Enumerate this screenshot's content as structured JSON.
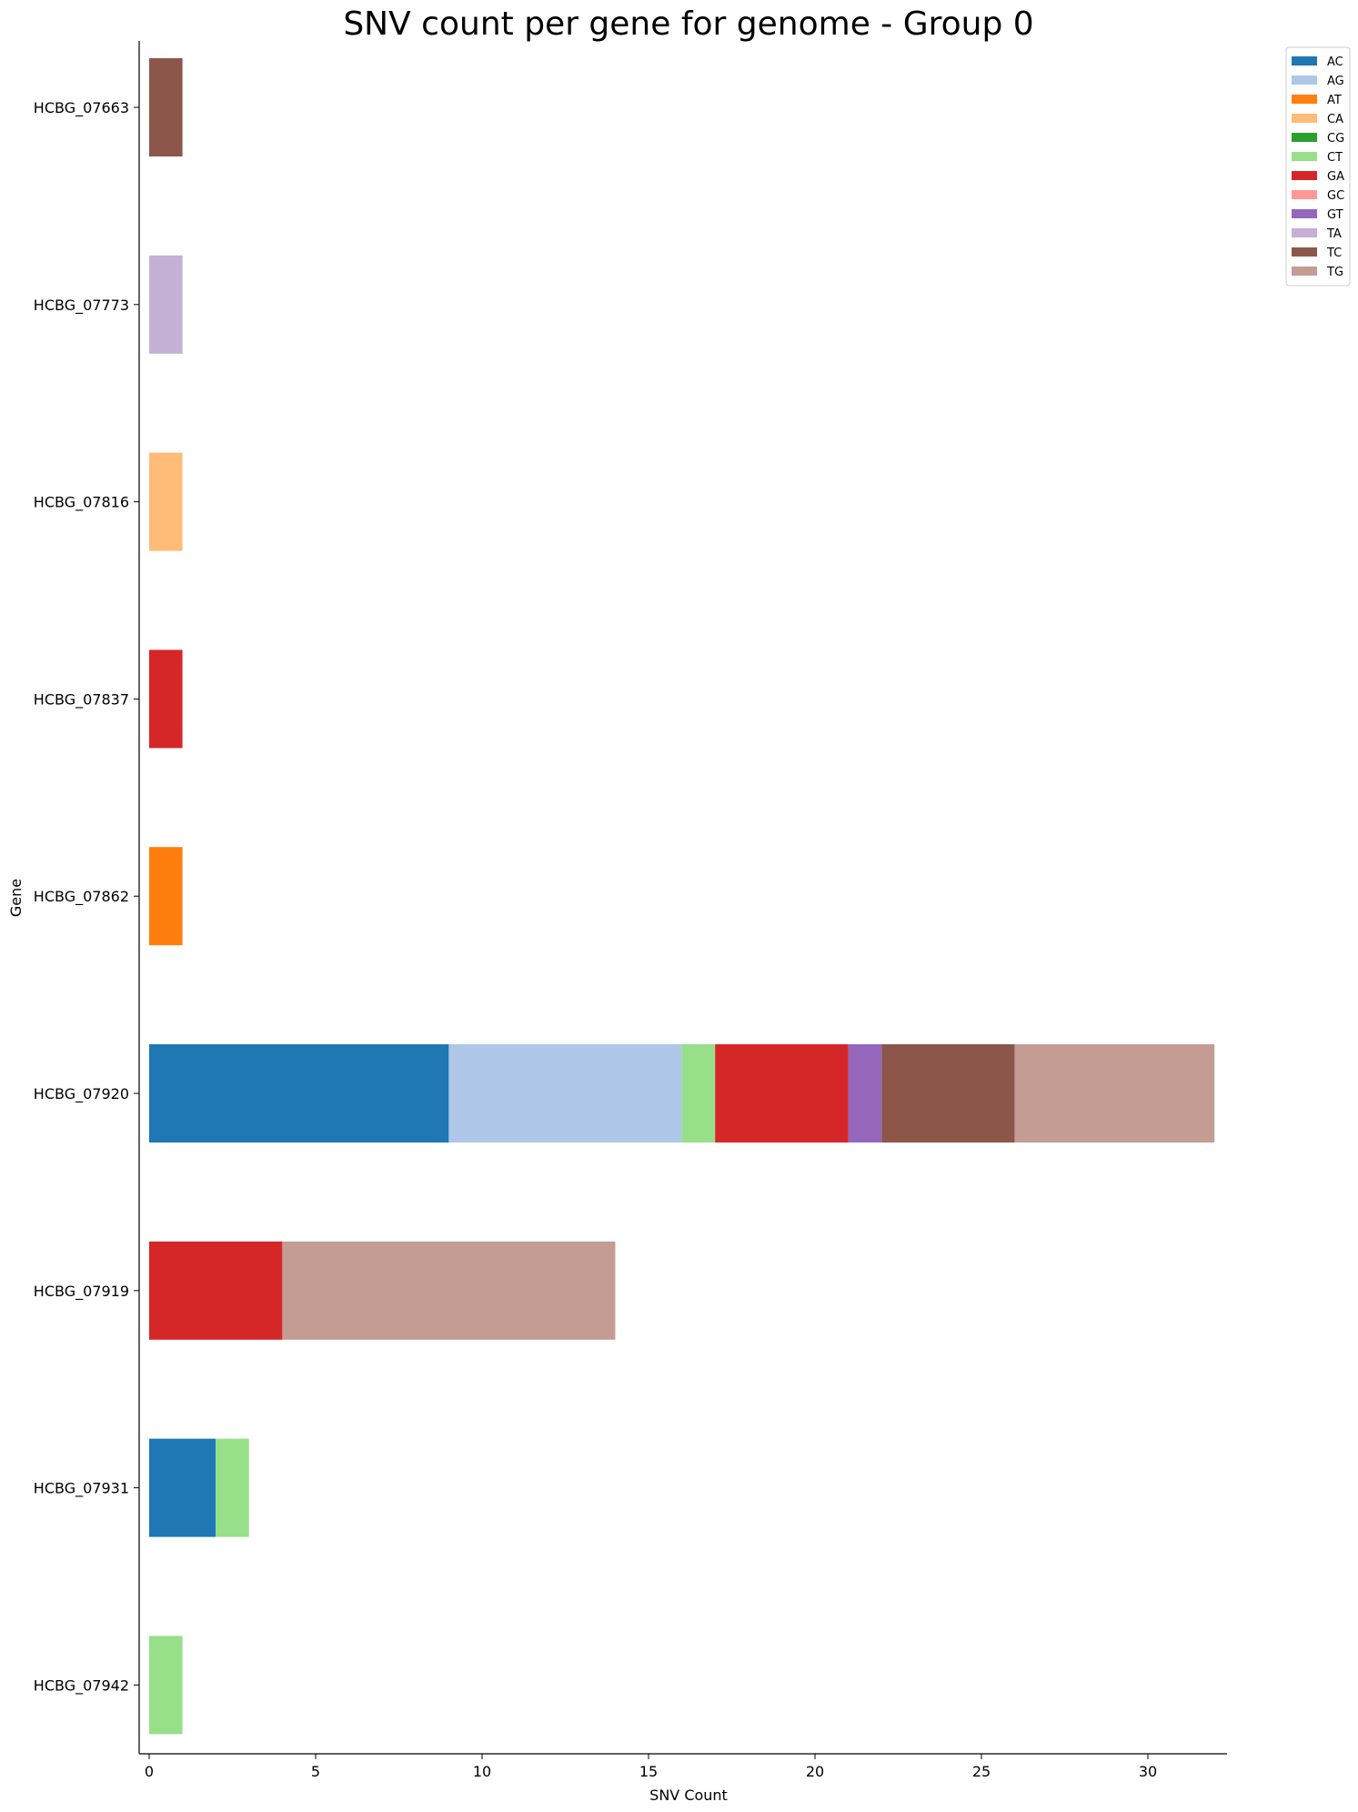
{
  "chart_data": {
    "type": "bar",
    "orientation": "horizontal",
    "stacked": true,
    "title": "SNV count per gene for genome - Group 0",
    "xlabel": "SNV Count",
    "ylabel": "Gene",
    "xlim": [
      0,
      32.3
    ],
    "xticks": [
      0,
      5,
      10,
      15,
      20,
      25,
      30
    ],
    "grid": false,
    "legend_position": "top-right outside",
    "categories": [
      "HCBG_07663",
      "HCBG_07773",
      "HCBG_07816",
      "HCBG_07837",
      "HCBG_07862",
      "HCBG_07920",
      "HCBG_07919",
      "HCBG_07931",
      "HCBG_07942"
    ],
    "series": [
      {
        "name": "AC",
        "color": "#1f77b4",
        "values": [
          0,
          0,
          0,
          0,
          0,
          9,
          0,
          2,
          0
        ]
      },
      {
        "name": "AG",
        "color": "#aec7e8",
        "values": [
          0,
          0,
          0,
          0,
          0,
          7,
          0,
          0,
          0
        ]
      },
      {
        "name": "AT",
        "color": "#ff7f0e",
        "values": [
          0,
          0,
          0,
          0,
          1,
          0,
          0,
          0,
          0
        ]
      },
      {
        "name": "CA",
        "color": "#ffbb78",
        "values": [
          0,
          0,
          1,
          0,
          0,
          0,
          0,
          0,
          0
        ]
      },
      {
        "name": "CG",
        "color": "#2ca02c",
        "values": [
          0,
          0,
          0,
          0,
          0,
          0,
          0,
          0,
          0
        ]
      },
      {
        "name": "CT",
        "color": "#98df8a",
        "values": [
          0,
          0,
          0,
          0,
          0,
          1,
          0,
          1,
          1
        ]
      },
      {
        "name": "GA",
        "color": "#d62728",
        "values": [
          0,
          0,
          0,
          1,
          0,
          4,
          4,
          0,
          0
        ]
      },
      {
        "name": "GC",
        "color": "#ff9896",
        "values": [
          0,
          0,
          0,
          0,
          0,
          0,
          0,
          0,
          0
        ]
      },
      {
        "name": "GT",
        "color": "#9467bd",
        "values": [
          0,
          0,
          0,
          0,
          0,
          1,
          0,
          0,
          0
        ]
      },
      {
        "name": "TA",
        "color": "#c5b0d5",
        "values": [
          0,
          1,
          0,
          0,
          0,
          0,
          0,
          0,
          0
        ]
      },
      {
        "name": "TC",
        "color": "#8c564b",
        "values": [
          1,
          0,
          0,
          0,
          0,
          4,
          0,
          0,
          0
        ]
      },
      {
        "name": "TG",
        "color": "#c49c94",
        "values": [
          0,
          0,
          0,
          0,
          0,
          6,
          10,
          0,
          0
        ]
      }
    ]
  }
}
